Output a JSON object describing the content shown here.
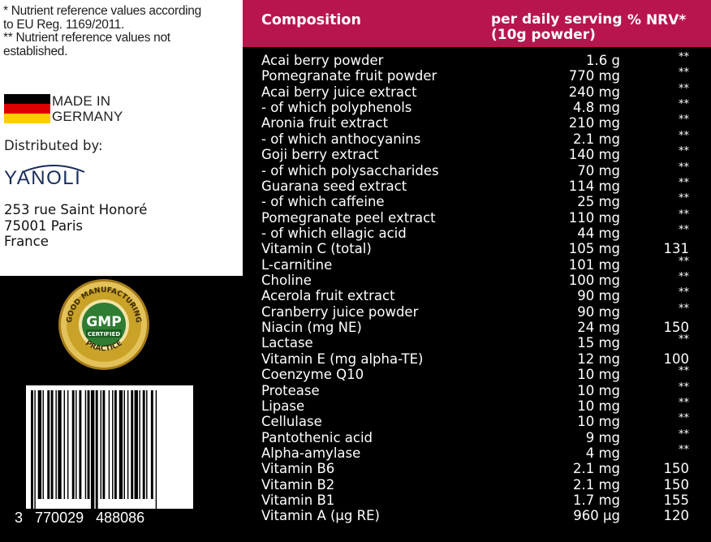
{
  "footnotes": {
    "line1": "* Nutrient reference values according",
    "line2": "to EU Reg. 1169/2011.",
    "line3": "** Nutrient reference values not",
    "line4": "established."
  },
  "origin": {
    "line1": "MADE IN",
    "line2": "GERMANY"
  },
  "distributor": {
    "label": "Distributed by:",
    "brand": "YANOLI",
    "address1": "253 rue Saint Honoré",
    "address2": "75001 Paris",
    "address3": "France"
  },
  "gmp_seal": {
    "top": "GOOD MANUFACTURING",
    "bottom": "PRACTICE",
    "center": "GMP",
    "banner": "CERTIFIED"
  },
  "barcode": {
    "digits_left": "3",
    "digits_mid": "770029",
    "digits_right": "488086"
  },
  "table": {
    "headers": {
      "composition": "Composition",
      "serving1": "per daily serving",
      "serving2": "(10g powder)",
      "nrv": "% NRV*"
    },
    "rows": [
      {
        "name": "Acai berry powder",
        "amount": "1.6 g",
        "nrv": "**"
      },
      {
        "name": "Pomegranate fruit powder",
        "amount": "770 mg",
        "nrv": "**"
      },
      {
        "name": "Acai berry juice extract",
        "amount": "240 mg",
        "nrv": "**"
      },
      {
        "name": "- of which polyphenols",
        "amount": "4.8 mg",
        "nrv": "**"
      },
      {
        "name": "Aronia fruit extract",
        "amount": "210 mg",
        "nrv": "**"
      },
      {
        "name": "- of which anthocyanins",
        "amount": "2.1 mg",
        "nrv": "**"
      },
      {
        "name": "Goji berry extract",
        "amount": "140 mg",
        "nrv": "**"
      },
      {
        "name": "- of which polysaccharides",
        "amount": "70 mg",
        "nrv": "**"
      },
      {
        "name": "Guarana seed extract",
        "amount": "114 mg",
        "nrv": "**"
      },
      {
        "name": "- of which caffeine",
        "amount": "25 mg",
        "nrv": "**"
      },
      {
        "name": "Pomegranate peel extract",
        "amount": "110 mg",
        "nrv": "**"
      },
      {
        "name": "- of which ellagic acid",
        "amount": "44 mg",
        "nrv": "**"
      },
      {
        "name": "Vitamin C (total)",
        "amount": "105 mg",
        "nrv": "131"
      },
      {
        "name": "L-carnitine",
        "amount": "101 mg",
        "nrv": "**"
      },
      {
        "name": "Choline",
        "amount": "100 mg",
        "nrv": "**"
      },
      {
        "name": "Acerola fruit extract",
        "amount": "90 mg",
        "nrv": "**"
      },
      {
        "name": "Cranberry juice powder",
        "amount": "90 mg",
        "nrv": "**"
      },
      {
        "name": "Niacin (mg NE)",
        "amount": "24 mg",
        "nrv": "150"
      },
      {
        "name": "Lactase",
        "amount": "15 mg",
        "nrv": "**"
      },
      {
        "name": "Vitamin E (mg alpha-TE)",
        "amount": "12 mg",
        "nrv": "100"
      },
      {
        "name": "Coenzyme Q10",
        "amount": "10 mg",
        "nrv": "**"
      },
      {
        "name": "Protease",
        "amount": "10 mg",
        "nrv": "**"
      },
      {
        "name": "Lipase",
        "amount": "10 mg",
        "nrv": "**"
      },
      {
        "name": "Cellulase",
        "amount": "10 mg",
        "nrv": "**"
      },
      {
        "name": "Pantothenic acid",
        "amount": "9 mg",
        "nrv": "**"
      },
      {
        "name": "Alpha-amylase",
        "amount": "4 mg",
        "nrv": "**"
      },
      {
        "name": "Vitamin B6",
        "amount": "2.1 mg",
        "nrv": "150"
      },
      {
        "name": "Vitamin B2",
        "amount": "2.1 mg",
        "nrv": "150"
      },
      {
        "name": "Vitamin B1",
        "amount": "1.7 mg",
        "nrv": "155"
      },
      {
        "name": "Vitamin A (µg RE)",
        "amount": "960 µg",
        "nrv": "120"
      }
    ]
  },
  "colors": {
    "header_bg": "#b8154f",
    "background": "#000000",
    "gold": "#c9a227",
    "green": "#2e7d32"
  }
}
